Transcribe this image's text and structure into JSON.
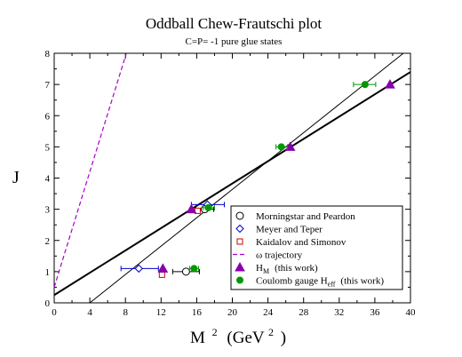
{
  "chart_data": {
    "type": "scatter",
    "title": "Oddball Chew-Frautschi plot",
    "subtitle": "C=P= -1 pure glue states",
    "xlabel": "M",
    "xlabel_sup": "2",
    "xlabel_units_open": "(GeV",
    "xlabel_units_sup": "2",
    "xlabel_units_close": ")",
    "ylabel": "J",
    "xlim": [
      0,
      40
    ],
    "ylim": [
      0,
      8
    ],
    "xticks": [
      0,
      4,
      8,
      12,
      16,
      20,
      24,
      28,
      32,
      36,
      40
    ],
    "yticks": [
      0,
      1,
      2,
      3,
      4,
      5,
      6,
      7,
      8
    ],
    "grid": false,
    "legend_position": "bottom-right",
    "series": [
      {
        "name": "Morningstar and Peardon",
        "marker": "open-circle",
        "color": "#000000",
        "points": [
          {
            "x": 14.8,
            "y": 1,
            "xerr_low": 1.5,
            "xerr_high": 1.5
          },
          {
            "x": 16.9,
            "y": 3,
            "xerr_low": 1.0,
            "xerr_high": 1.0
          }
        ]
      },
      {
        "name": "Meyer and Teper",
        "marker": "open-diamond",
        "color": "#0000cc",
        "points": [
          {
            "x": 9.5,
            "y": 1.1,
            "xerr_low": 2.0,
            "xerr_high": 2.2
          },
          {
            "x": 17.2,
            "y": 3.15,
            "xerr_low": 1.8,
            "xerr_high": 1.9
          }
        ]
      },
      {
        "name": "Kaidalov and Simonov",
        "marker": "open-square",
        "color": "#cc0000",
        "points": [
          {
            "x": 12.1,
            "y": 0.9
          },
          {
            "x": 16.1,
            "y": 2.95
          }
        ]
      },
      {
        "name": "ω trajectory",
        "linestyle": "dashed",
        "color": "#aa00cc",
        "line": [
          {
            "x": 0,
            "y": 0.5
          },
          {
            "x": 8.1,
            "y": 8
          }
        ]
      },
      {
        "name": "H",
        "name_sub": "M",
        "name_note": "(this work)",
        "marker": "filled-triangle",
        "color": "#8800aa",
        "points": [
          {
            "x": 12.2,
            "y": 1.1
          },
          {
            "x": 15.4,
            "y": 3.0
          },
          {
            "x": 26.5,
            "y": 5.0
          },
          {
            "x": 37.7,
            "y": 7.0
          }
        ]
      },
      {
        "name": "Coulomb gauge H",
        "name_sub": "eff",
        "name_note": "(this work)",
        "marker": "filled-circle",
        "color": "#009900",
        "points": [
          {
            "x": 15.7,
            "y": 1.1,
            "xerr_low": 0.5,
            "xerr_high": 0.5
          },
          {
            "x": 17.3,
            "y": 3.05,
            "xerr_low": 0.6,
            "xerr_high": 0.7
          },
          {
            "x": 25.5,
            "y": 5.0,
            "xerr_low": 0.6,
            "xerr_high": 0.7
          },
          {
            "x": 34.9,
            "y": 7.0,
            "xerr_low": 1.3,
            "xerr_high": 1.2
          }
        ]
      }
    ],
    "fit_lines": [
      {
        "color": "#000000",
        "width": "thick",
        "points": [
          {
            "x": 0,
            "y": 0.25
          },
          {
            "x": 40,
            "y": 7.4
          }
        ]
      },
      {
        "color": "#000000",
        "width": "thin",
        "points": [
          {
            "x": 4.0,
            "y": 0
          },
          {
            "x": 39.2,
            "y": 8
          }
        ]
      }
    ]
  }
}
